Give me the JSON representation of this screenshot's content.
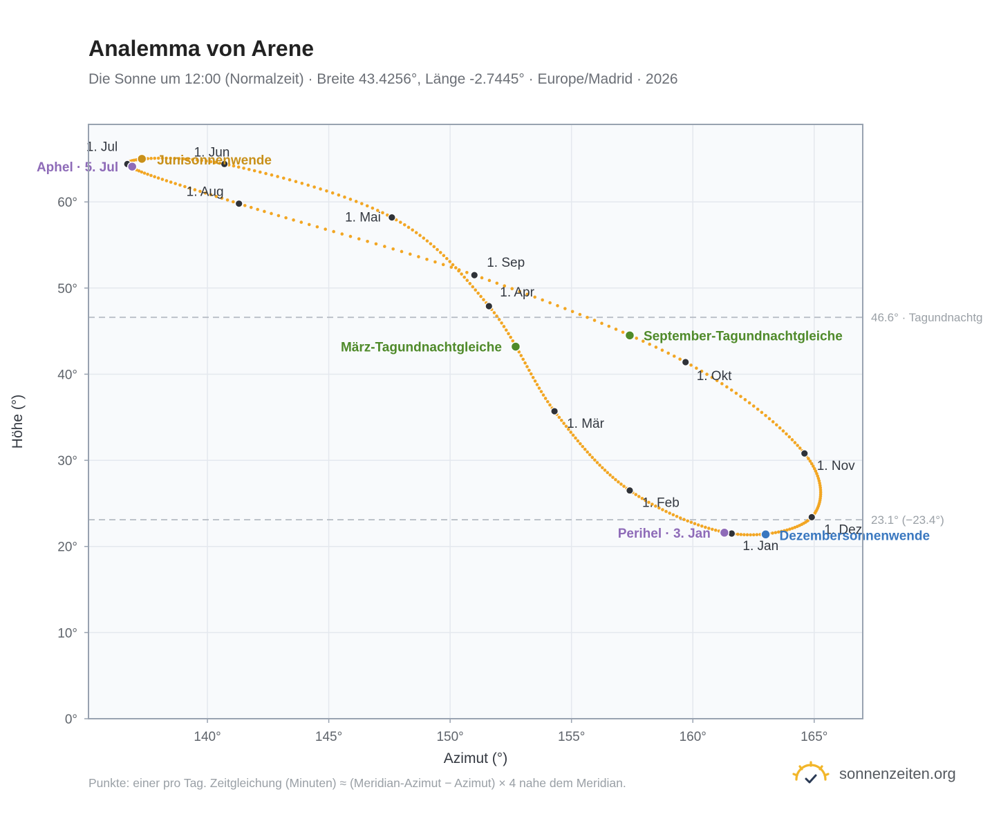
{
  "header": {
    "title": "Analemma von Arene",
    "subtitle": "Die Sonne um 12:00 (Normalzeit) · Breite 43.4256°, Länge -2.7445° · Europe/Madrid · 2026"
  },
  "footer": {
    "note": "Punkte: einer pro Tag. Zeitgleichung (Minuten) ≈ (Meridian-Azimut − Azimut) × 4 nahe dem Meridian.",
    "brand": "sonnenzeiten.org"
  },
  "colors": {
    "curve": "#f2a623",
    "month_dot": "#2f3238",
    "equinox": "#4f8a2a",
    "june_solstice": "#c8901a",
    "december_solstice": "#3a78c0",
    "aphelion_perihelion": "#8e6bb8",
    "grid": "#e4e8ee",
    "plot_bg": "#f8fafc",
    "frame": "#98a2b0",
    "reference_line": "#b8bec6"
  },
  "chart_data": {
    "type": "scatter",
    "title": "Analemma von Arene",
    "xlabel": "Azimut (°)",
    "ylabel": "Höhe (°)",
    "xlim": [
      135.1,
      167.0
    ],
    "ylim": [
      0,
      69.0
    ],
    "x_ticks": [
      140,
      145,
      150,
      155,
      160,
      165
    ],
    "x_tick_labels": [
      "140°",
      "145°",
      "150°",
      "155°",
      "160°",
      "165°"
    ],
    "y_ticks": [
      0,
      10,
      20,
      30,
      40,
      50,
      60
    ],
    "y_tick_labels": [
      "0°",
      "10°",
      "20°",
      "30°",
      "40°",
      "50°",
      "60°"
    ],
    "grid": true,
    "series": [
      {
        "name": "",
        "points": [
          {
            "x": 161.6,
            "y": 21.5,
            "label": "1. Jan"
          },
          {
            "x": 157.4,
            "y": 26.5,
            "label": "1. Feb"
          },
          {
            "x": 154.3,
            "y": 35.7,
            "label": "1. Mär"
          },
          {
            "x": 151.6,
            "y": 47.9,
            "label": "1. Apr"
          },
          {
            "x": 147.6,
            "y": 58.2,
            "label": "1. Mai"
          },
          {
            "x": 140.7,
            "y": 64.4,
            "label": "1. Jun"
          },
          {
            "x": 136.7,
            "y": 64.4,
            "label": "1. Jul"
          },
          {
            "x": 141.3,
            "y": 59.8,
            "label": "1. Aug"
          },
          {
            "x": 151.0,
            "y": 51.5,
            "label": "1. Sep"
          },
          {
            "x": 159.7,
            "y": 41.4,
            "label": "1. Okt"
          },
          {
            "x": 164.6,
            "y": 30.8,
            "label": "1. Nov"
          },
          {
            "x": 164.9,
            "y": 23.4,
            "label": "1. Dez"
          }
        ]
      }
    ],
    "events": [
      {
        "name": "Aphel · 5. Jul",
        "x": 136.9,
        "y": 64.1,
        "kind": "apsis"
      },
      {
        "name": "Perihel · 3. Jan",
        "x": 161.3,
        "y": 21.6,
        "kind": "apsis"
      },
      {
        "name": "Junisonnenwende",
        "x": 137.3,
        "y": 65.0,
        "kind": "june"
      },
      {
        "name": "Dezembersonnenwende",
        "x": 163.0,
        "y": 21.4,
        "kind": "december"
      },
      {
        "name": "März-Tagundnachtgleiche",
        "x": 152.7,
        "y": 43.2,
        "kind": "equinox"
      },
      {
        "name": "September-Tagundnachtgleiche",
        "x": 157.4,
        "y": 44.5,
        "kind": "equinox"
      }
    ],
    "reference_lines": [
      {
        "y": 46.6,
        "label": "46.6° · Tagundnachtg"
      },
      {
        "y": 23.1,
        "label": "23.1° (−23.4°)"
      }
    ]
  }
}
